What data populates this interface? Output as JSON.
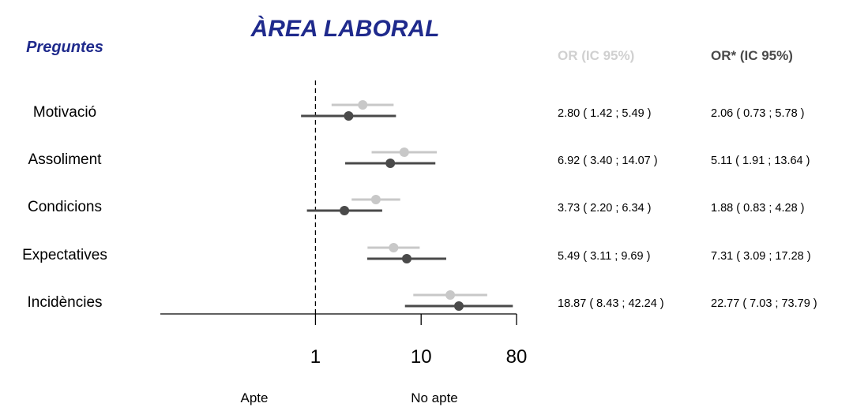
{
  "header": {
    "title": "ÀREA LABORAL",
    "questions_label": "Preguntes",
    "or_label": "OR (IC 95%)",
    "or_adj_label": "OR* (IC 95%)"
  },
  "footer": {
    "left_label": "Apte",
    "right_label": "No apte"
  },
  "chart_data": {
    "type": "forest",
    "title": "ÀREA LABORAL",
    "x_scale": "log",
    "xlim": [
      0.034,
      80
    ],
    "xticks": [
      1,
      10,
      80
    ],
    "reference_line": 1,
    "categories": [
      "Motivació",
      "Assoliment",
      "Condicions",
      "Expectatives",
      "Incidències"
    ],
    "series": [
      {
        "name": "OR (IC 95%)",
        "color": "#c8c8c8",
        "estimates": [
          2.8,
          6.92,
          3.73,
          5.49,
          18.87
        ],
        "lower": [
          1.42,
          3.4,
          2.2,
          3.11,
          8.43
        ],
        "upper": [
          5.49,
          14.07,
          6.34,
          9.69,
          42.24
        ],
        "labels": [
          "2.80 ( 1.42 ; 5.49 )",
          "6.92 ( 3.40 ; 14.07 )",
          "3.73 ( 2.20 ; 6.34 )",
          "5.49 ( 3.11 ; 9.69 )",
          "18.87 ( 8.43 ; 42.24 )"
        ]
      },
      {
        "name": "OR* (IC 95%)",
        "color": "#4a4a4a",
        "estimates": [
          2.06,
          5.11,
          1.88,
          7.31,
          22.77
        ],
        "lower": [
          0.73,
          1.91,
          0.83,
          3.09,
          7.03
        ],
        "upper": [
          5.78,
          13.64,
          4.28,
          17.28,
          73.79
        ],
        "labels": [
          "2.06 ( 0.73 ; 5.78 )",
          "5.11 ( 1.91 ; 13.64 )",
          "1.88 ( 0.83 ; 4.28 )",
          "7.31 ( 3.09 ; 17.28 )",
          "22.77 ( 7.03 ; 73.79 )"
        ]
      }
    ]
  }
}
